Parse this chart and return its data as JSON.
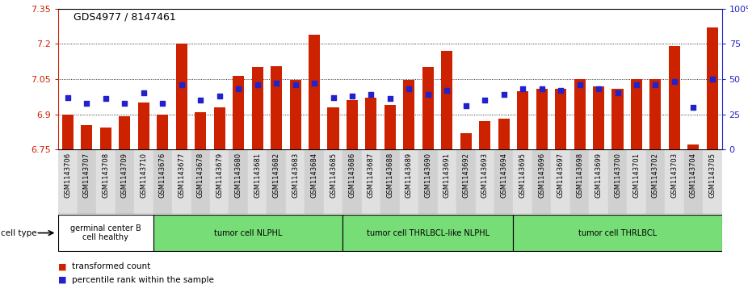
{
  "title": "GDS4977 / 8147461",
  "samples": [
    "GSM1143706",
    "GSM1143707",
    "GSM1143708",
    "GSM1143709",
    "GSM1143710",
    "GSM1143676",
    "GSM1143677",
    "GSM1143678",
    "GSM1143679",
    "GSM1143680",
    "GSM1143681",
    "GSM1143682",
    "GSM1143683",
    "GSM1143684",
    "GSM1143685",
    "GSM1143686",
    "GSM1143687",
    "GSM1143688",
    "GSM1143689",
    "GSM1143690",
    "GSM1143691",
    "GSM1143692",
    "GSM1143693",
    "GSM1143694",
    "GSM1143695",
    "GSM1143696",
    "GSM1143697",
    "GSM1143698",
    "GSM1143699",
    "GSM1143700",
    "GSM1143701",
    "GSM1143702",
    "GSM1143703",
    "GSM1143704",
    "GSM1143705"
  ],
  "bar_values": [
    6.9,
    6.855,
    6.845,
    6.89,
    6.95,
    6.9,
    7.2,
    6.91,
    6.93,
    7.065,
    7.1,
    7.105,
    7.045,
    7.24,
    6.93,
    6.96,
    6.97,
    6.94,
    7.045,
    7.1,
    7.17,
    6.82,
    6.87,
    6.88,
    7.0,
    7.01,
    7.01,
    7.05,
    7.02,
    7.01,
    7.05,
    7.05,
    7.19,
    6.77,
    7.27
  ],
  "percentile_values": [
    37,
    33,
    36,
    33,
    40,
    33,
    46,
    35,
    38,
    43,
    46,
    47,
    46,
    47,
    37,
    38,
    39,
    36,
    43,
    39,
    42,
    31,
    35,
    39,
    43,
    43,
    42,
    46,
    43,
    40,
    46,
    46,
    48,
    30,
    50
  ],
  "ylim_left": [
    6.75,
    7.35
  ],
  "ylim_right": [
    0,
    100
  ],
  "yticks_left": [
    6.75,
    6.9,
    7.05,
    7.2,
    7.35
  ],
  "yticks_right": [
    0,
    25,
    50,
    75,
    100
  ],
  "bar_color": "#cc2200",
  "dot_color": "#2222cc",
  "group_boundaries": [
    0,
    5,
    15,
    24,
    35
  ],
  "group_labels": [
    "germinal center B\ncell healthy",
    "tumor cell NLPHL",
    "tumor cell THRLBCL-like NLPHL",
    "tumor cell THRLBCL"
  ],
  "group_colors": [
    "#ffffff",
    "#77dd77",
    "#77dd77",
    "#77dd77"
  ],
  "legend_bar_label": "transformed count",
  "legend_dot_label": "percentile rank within the sample",
  "left_axis_color": "#cc2200",
  "right_axis_color": "#2222cc"
}
